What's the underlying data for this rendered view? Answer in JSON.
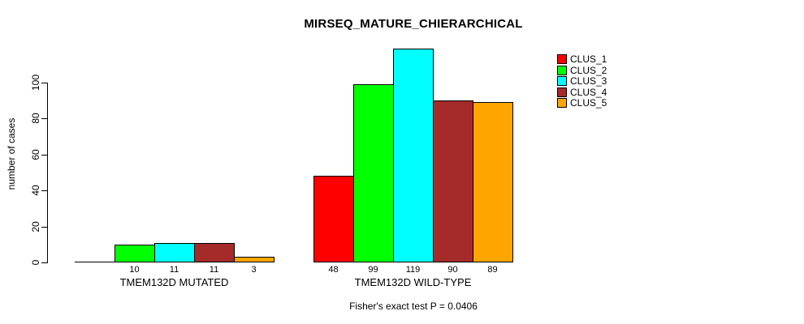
{
  "chart_data": {
    "type": "bar",
    "title": "MIRSEQ_MATURE_CHIERARCHICAL",
    "ylabel": "number of cases",
    "xlabel": "",
    "footnote": "Fisher's exact test P = 0.0406",
    "ylim": [
      0,
      100
    ],
    "y_ticks": [
      0,
      20,
      40,
      60,
      80,
      100
    ],
    "grid": false,
    "legend_position": "top-right",
    "series": [
      {
        "name": "CLUS_1",
        "color": "#FF0000"
      },
      {
        "name": "CLUS_2",
        "color": "#00FF00"
      },
      {
        "name": "CLUS_3",
        "color": "#00FFFF"
      },
      {
        "name": "CLUS_4",
        "color": "#A52A2A"
      },
      {
        "name": "CLUS_5",
        "color": "#FFA500"
      }
    ],
    "groups": [
      {
        "label": "TMEM132D MUTATED",
        "values": [
          0,
          10,
          11,
          11,
          3
        ],
        "bar_labels": [
          "",
          "10",
          "11",
          "11",
          "3"
        ]
      },
      {
        "label": "TMEM132D WILD-TYPE",
        "values": [
          48,
          99,
          119,
          90,
          89
        ],
        "bar_labels": [
          "48",
          "99",
          "119",
          "90",
          "89"
        ]
      }
    ]
  }
}
